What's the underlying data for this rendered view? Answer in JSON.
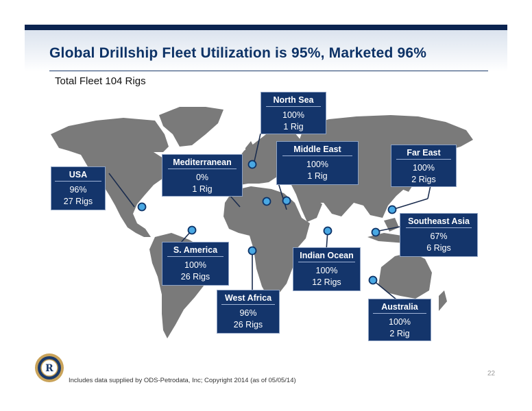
{
  "slide": {
    "title": "Global Drillship Fleet Utilization is 95%, Marketed 96%",
    "subtitle": "Total Fleet 104 Rigs",
    "footnote": "Includes data supplied by ODS-Petrodata, Inc; Copyright 2014 (as of 05/05/14)",
    "page_number": "22"
  },
  "colors": {
    "box": "#14356b",
    "pin": "#49a8e3",
    "title": "#0d3266",
    "land": "#7a7a7a"
  },
  "logo": {
    "icon": "company-seal-icon",
    "letter": "R"
  },
  "regions": {
    "usa": {
      "name": "USA",
      "pct": "96%",
      "rigs": "27 Rigs"
    },
    "mediterranean": {
      "name": "Mediterranean",
      "pct": "0%",
      "rigs": "1 Rig"
    },
    "north_sea": {
      "name": "North Sea",
      "pct": "100%",
      "rigs": "1 Rig"
    },
    "middle_east": {
      "name": "Middle East",
      "pct": "100%",
      "rigs": "1 Rig"
    },
    "far_east": {
      "name": "Far East",
      "pct": "100%",
      "rigs": "2 Rigs"
    },
    "southeast_asia": {
      "name": "Southeast Asia",
      "pct": "67%",
      "rigs": "6 Rigs"
    },
    "s_america": {
      "name": "S. America",
      "pct": "100%",
      "rigs": "26 Rigs"
    },
    "indian_ocean": {
      "name": "Indian Ocean",
      "pct": "100%",
      "rigs": "12 Rigs"
    },
    "west_africa": {
      "name": "West Africa",
      "pct": "96%",
      "rigs": "26 Rigs"
    },
    "australia": {
      "name": "Australia",
      "pct": "100%",
      "rigs": "2 Rig"
    }
  }
}
